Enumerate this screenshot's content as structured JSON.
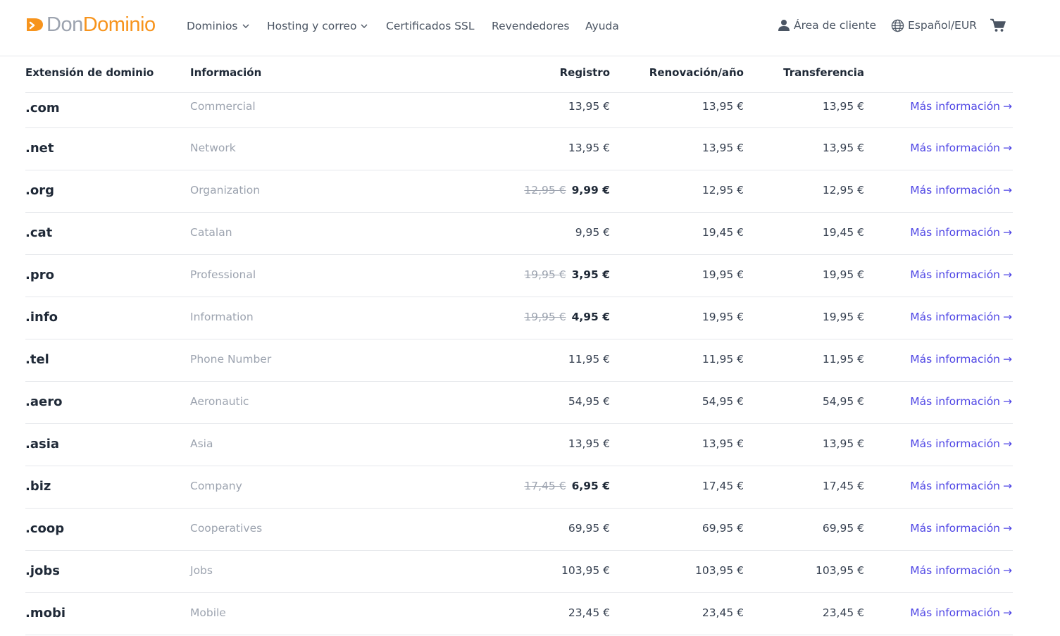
{
  "header": {
    "logo": {
      "part1": "Don",
      "part2": "Dominio"
    },
    "nav": [
      {
        "label": "Dominios",
        "dropdown": true
      },
      {
        "label": "Hosting y correo",
        "dropdown": true
      },
      {
        "label": "Certificados SSL",
        "dropdown": false
      },
      {
        "label": "Revendedores",
        "dropdown": false
      },
      {
        "label": "Ayuda",
        "dropdown": false
      }
    ],
    "client_area": "Área de cliente",
    "language": "Español/EUR",
    "icons": {
      "client": "user-icon",
      "language": "globe-icon",
      "cart": "cart-icon"
    },
    "colors": {
      "brand_orange": "#f7941d",
      "brand_grey": "#9ca3af",
      "link": "#4f46e5"
    }
  },
  "table": {
    "headers": {
      "extension": "Extensión de dominio",
      "info": "Información",
      "registration": "Registro",
      "renewal": "Renovación/año",
      "transfer": "Transferencia"
    },
    "rows": [
      {
        "ext": ".com",
        "info": "Commercial",
        "old": "",
        "reg": "13,95 €",
        "ren": "13,95 €",
        "trans": "13,95 €",
        "link": "Más información"
      },
      {
        "ext": ".net",
        "info": "Network",
        "old": "",
        "reg": "13,95 €",
        "ren": "13,95 €",
        "trans": "13,95 €",
        "link": "Más información"
      },
      {
        "ext": ".org",
        "info": "Organization",
        "old": "12,95 €",
        "reg": "9,99 €",
        "ren": "12,95 €",
        "trans": "12,95 €",
        "link": "Más información"
      },
      {
        "ext": ".cat",
        "info": "Catalan",
        "old": "",
        "reg": "9,95 €",
        "ren": "19,45 €",
        "trans": "19,45 €",
        "link": "Más información"
      },
      {
        "ext": ".pro",
        "info": "Professional",
        "old": "19,95 €",
        "reg": "3,95 €",
        "ren": "19,95 €",
        "trans": "19,95 €",
        "link": "Más información"
      },
      {
        "ext": ".info",
        "info": "Information",
        "old": "19,95 €",
        "reg": "4,95 €",
        "ren": "19,95 €",
        "trans": "19,95 €",
        "link": "Más información"
      },
      {
        "ext": ".tel",
        "info": "Phone Number",
        "old": "",
        "reg": "11,95 €",
        "ren": "11,95 €",
        "trans": "11,95 €",
        "link": "Más información"
      },
      {
        "ext": ".aero",
        "info": "Aeronautic",
        "old": "",
        "reg": "54,95 €",
        "ren": "54,95 €",
        "trans": "54,95 €",
        "link": "Más información"
      },
      {
        "ext": ".asia",
        "info": "Asia",
        "old": "",
        "reg": "13,95 €",
        "ren": "13,95 €",
        "trans": "13,95 €",
        "link": "Más información"
      },
      {
        "ext": ".biz",
        "info": "Company",
        "old": "17,45 €",
        "reg": "6,95 €",
        "ren": "17,45 €",
        "trans": "17,45 €",
        "link": "Más información"
      },
      {
        "ext": ".coop",
        "info": "Cooperatives",
        "old": "",
        "reg": "69,95 €",
        "ren": "69,95 €",
        "trans": "69,95 €",
        "link": "Más información"
      },
      {
        "ext": ".jobs",
        "info": "Jobs",
        "old": "",
        "reg": "103,95 €",
        "ren": "103,95 €",
        "trans": "103,95 €",
        "link": "Más información"
      },
      {
        "ext": ".mobi",
        "info": "Mobile",
        "old": "",
        "reg": "23,45 €",
        "ren": "23,45 €",
        "trans": "23,45 €",
        "link": "Más información"
      }
    ]
  }
}
